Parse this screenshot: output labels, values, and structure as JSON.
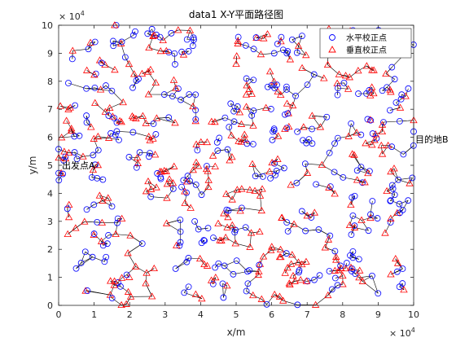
{
  "chart_data": {
    "type": "scatter",
    "title": "data1 X-Y平面路径图",
    "xlabel": "x/m",
    "ylabel": "y/m",
    "xlim": [
      0,
      100000
    ],
    "ylim": [
      0,
      100000
    ],
    "x_multiplier_label": "× 10^4",
    "y_multiplier_label": "× 10^4",
    "x_ticks": [
      "0",
      "1",
      "2",
      "3",
      "4",
      "5",
      "6",
      "7",
      "8",
      "9",
      "10"
    ],
    "y_ticks": [
      "0",
      "1",
      "2",
      "3",
      "4",
      "5",
      "6",
      "7",
      "8",
      "9",
      "10"
    ],
    "grid": false,
    "legend_position": "top-right",
    "legend": [
      {
        "name": "水平校正点",
        "marker": "circle",
        "color": "#0000ff"
      },
      {
        "name": "垂直校正点",
        "marker": "triangle",
        "color": "#ff0000"
      }
    ],
    "annotations": [
      {
        "text": "出发点A",
        "x": 0,
        "y": 50000
      },
      {
        "text": "目的地B",
        "x": 100000,
        "y": 59000
      }
    ],
    "point_count_note": "",
    "seed": 20240
  }
}
